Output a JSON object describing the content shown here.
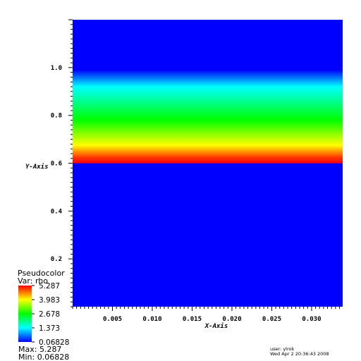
{
  "chart_data": {
    "type": "heatmap",
    "title": "",
    "xlabel": "X-Axis",
    "ylabel": "Y-Axis",
    "xlim": [
      0.0,
      0.0339
    ],
    "ylim": [
      0.0,
      1.2
    ],
    "x_ticks": [
      "0.005",
      "0.010",
      "0.015",
      "0.020",
      "0.025",
      "0.030"
    ],
    "y_ticks": [
      "0.2",
      "0.4",
      "0.6",
      "0.8",
      "1.0"
    ],
    "variable": "rho",
    "color_scale": "rainbow",
    "colors": [
      "#0000ff",
      "#00ffff",
      "#00ff00",
      "#ffff00",
      "#ff0000"
    ],
    "profile": [
      {
        "y": 0.0,
        "value": 0.06828
      },
      {
        "y": 0.599,
        "value": 0.06828
      },
      {
        "y": 0.6,
        "value": 5.287
      },
      {
        "y": 0.625,
        "value": 5.0
      },
      {
        "y": 0.675,
        "value": 3.983
      },
      {
        "y": 0.78,
        "value": 2.678
      },
      {
        "y": 0.92,
        "value": 1.373
      },
      {
        "y": 0.99,
        "value": 0.06828
      },
      {
        "y": 1.2,
        "value": 0.06828
      }
    ]
  },
  "legend": {
    "title": "Pseudocolor",
    "var_label": "Var: rho",
    "ticks": [
      "5.287",
      "3.983",
      "2.678",
      "1.373",
      "0.06828"
    ],
    "max_label": "Max:  5.287",
    "min_label": "Min:  0.06828"
  },
  "footer": {
    "user": "user: ylrok",
    "timestamp": "Wed Apr  2 20:36:43 2008"
  }
}
